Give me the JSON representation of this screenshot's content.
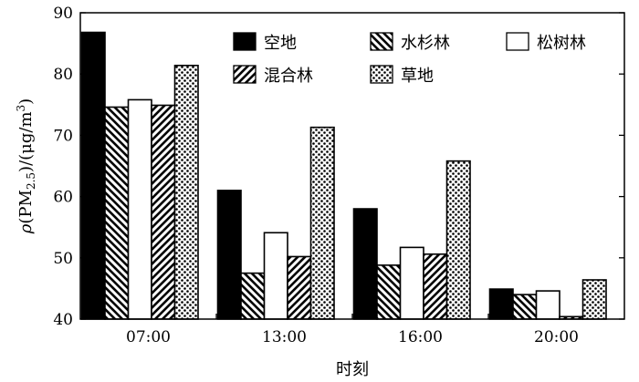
{
  "chart_data": {
    "type": "bar",
    "xlabel": "时刻",
    "ylabel": "ρ(PM2.5)/(μg/m3)",
    "ylim": [
      40,
      90
    ],
    "yticks": [
      40,
      50,
      60,
      70,
      80,
      90
    ],
    "categories": [
      "07:00",
      "13:00",
      "16:00",
      "20:00"
    ],
    "grid": false,
    "legend_position": "top-right",
    "series": [
      {
        "name": "空地",
        "pattern": "solid-black",
        "values": [
          86.8,
          61.0,
          58.0,
          44.9
        ]
      },
      {
        "name": "水杉林",
        "pattern": "hatch-reverse",
        "values": [
          74.6,
          47.5,
          48.8,
          44.0
        ]
      },
      {
        "name": "松树林",
        "pattern": "white",
        "values": [
          75.8,
          54.1,
          51.7,
          44.6
        ]
      },
      {
        "name": "混合林",
        "pattern": "hatch-forward",
        "values": [
          74.9,
          50.2,
          50.6,
          40.4
        ]
      },
      {
        "name": "草地",
        "pattern": "dots",
        "values": [
          81.4,
          71.3,
          65.8,
          46.4
        ]
      }
    ]
  }
}
